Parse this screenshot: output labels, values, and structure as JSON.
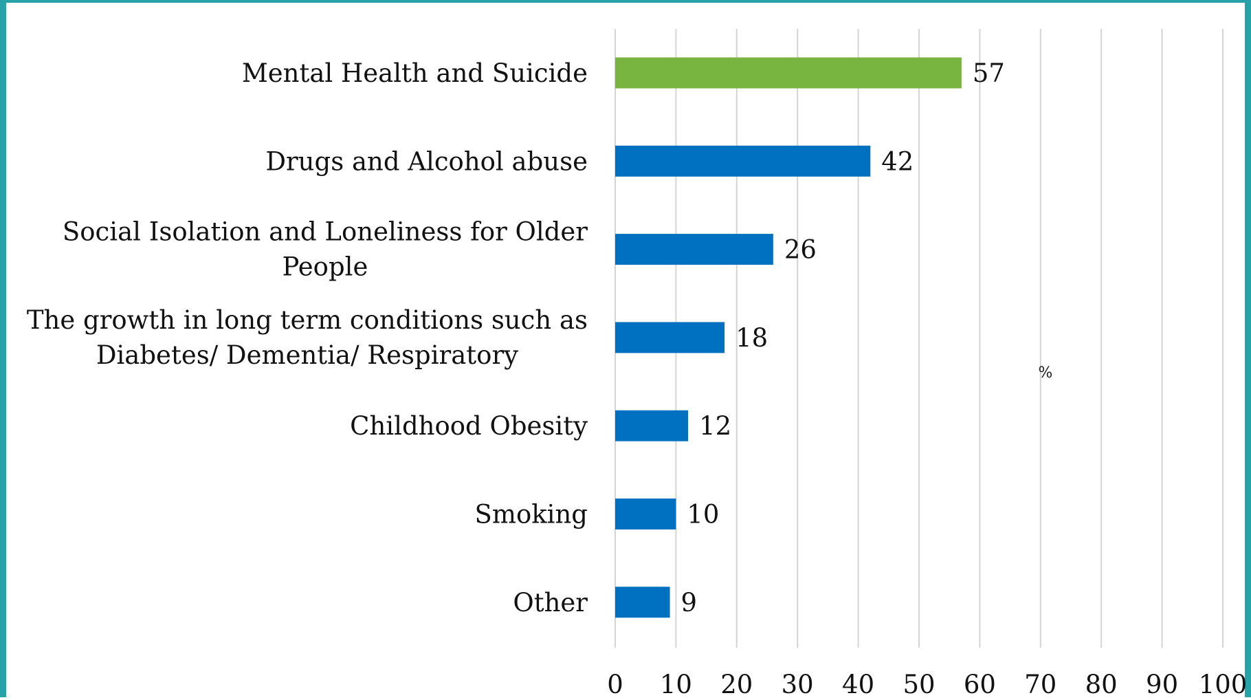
{
  "chart_data": {
    "type": "bar",
    "orientation": "horizontal",
    "categories": [
      [
        "Mental Health and Suicide"
      ],
      [
        "Drugs and Alcohol abuse"
      ],
      [
        "Social Isolation and Loneliness for Older",
        "People"
      ],
      [
        "The growth in long term conditions such as",
        "Diabetes/ Dementia/ Respiratory"
      ],
      [
        "Childhood Obesity"
      ],
      [
        "Smoking"
      ],
      [
        "Other"
      ]
    ],
    "values": [
      57,
      42,
      26,
      18,
      12,
      10,
      9
    ],
    "bar_colors": [
      "#77b540",
      "#0070c0",
      "#0070c0",
      "#0070c0",
      "#0070c0",
      "#0070c0",
      "#0070c0"
    ],
    "unit_label": "%",
    "xlim": [
      0,
      100
    ],
    "xticks": [
      0,
      10,
      20,
      30,
      40,
      50,
      60,
      70,
      80,
      90,
      100
    ],
    "grid": "vertical",
    "legend": "none",
    "title": "",
    "xlabel": "",
    "ylabel": ""
  },
  "colors": {
    "frame": "#26a3a8",
    "gridline": "#d4d4d4"
  }
}
